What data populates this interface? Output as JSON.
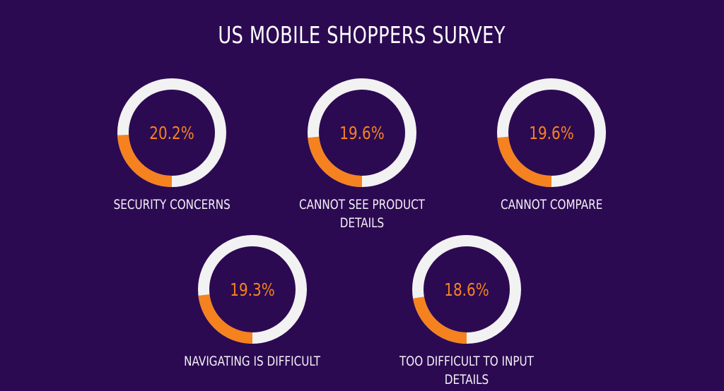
{
  "chart_data": {
    "type": "donut",
    "title": "US MOBILE SHOPPERS SURVEY",
    "unit": "%",
    "items": [
      {
        "label": "SECURITY CONCERNS",
        "value": 20.2,
        "display": "20.2%"
      },
      {
        "label": "CANNOT SEE PRODUCT DETAILS",
        "value": 19.6,
        "display": "19.6%"
      },
      {
        "label": "CANNOT COMPARE",
        "value": 19.6,
        "display": "19.6%"
      },
      {
        "label": "NAVIGATING IS DIFFICULT",
        "value": 19.3,
        "display": "19.3%"
      },
      {
        "label": "TOO DIFFICULT TO INPUT DETAILS",
        "value": 18.6,
        "display": "18.6%"
      }
    ],
    "colors": {
      "background": "#2c0a52",
      "value": "#f5821f",
      "track": "#f2f2f2",
      "text": "#ffffff"
    }
  }
}
